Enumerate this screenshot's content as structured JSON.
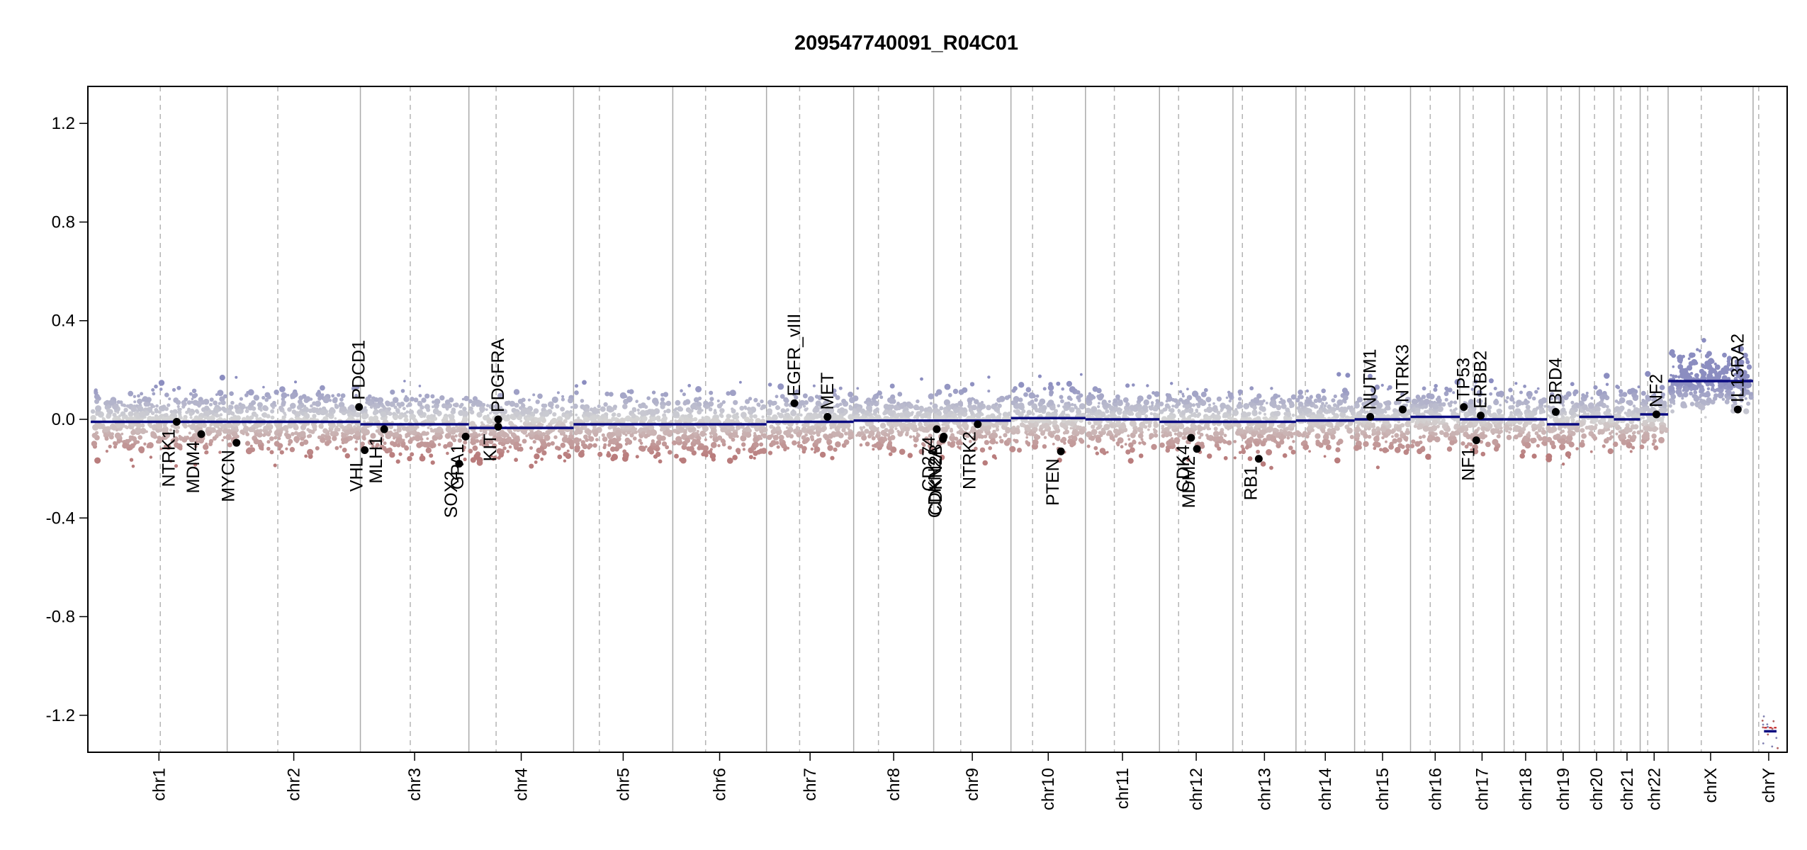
{
  "chart_data": {
    "type": "scatter",
    "title": "209547740091_R04C01",
    "xlabel": "",
    "ylabel": "",
    "ylim": [
      -1.35,
      1.35
    ],
    "y_ticks": [
      -1.2,
      -0.8,
      -0.4,
      0.0,
      0.4,
      0.8,
      1.2
    ],
    "y_tick_labels": [
      "-1.2",
      "-0.8",
      "-0.4",
      "0.0",
      "0.4",
      "0.8",
      "1.2"
    ],
    "grid": false,
    "colors": {
      "gain": "#8b8dc0",
      "loss": "#b97c7c",
      "neutral": "#d4d4d4",
      "segment": "#0a0a80",
      "segment_y": "#c01010",
      "boundary": "#aaaaaa",
      "centromere": "#b4b4b4",
      "gene_point": "#000000"
    },
    "chromosomes": [
      {
        "name": "chr1",
        "len": 249,
        "cen": 0.51,
        "segments": [
          {
            "f0": 0,
            "f1": 1,
            "v": -0.01
          }
        ]
      },
      {
        "name": "chr2",
        "len": 243,
        "cen": 0.38,
        "segments": [
          {
            "f0": 0,
            "f1": 1,
            "v": -0.01
          }
        ]
      },
      {
        "name": "chr3",
        "len": 198,
        "cen": 0.46,
        "segments": [
          {
            "f0": 0,
            "f1": 1,
            "v": -0.02
          }
        ]
      },
      {
        "name": "chr4",
        "len": 191,
        "cen": 0.26,
        "segments": [
          {
            "f0": 0,
            "f1": 1,
            "v": -0.035
          }
        ]
      },
      {
        "name": "chr5",
        "len": 181,
        "cen": 0.26,
        "segments": [
          {
            "f0": 0,
            "f1": 1,
            "v": -0.02
          }
        ]
      },
      {
        "name": "chr6",
        "len": 171,
        "cen": 0.35,
        "segments": [
          {
            "f0": 0,
            "f1": 1,
            "v": -0.02
          }
        ]
      },
      {
        "name": "chr7",
        "len": 159,
        "cen": 0.38,
        "segments": [
          {
            "f0": 0,
            "f1": 1,
            "v": -0.01
          }
        ]
      },
      {
        "name": "chr8",
        "len": 146,
        "cen": 0.31,
        "segments": [
          {
            "f0": 0,
            "f1": 1,
            "v": -0.005
          }
        ]
      },
      {
        "name": "chr9",
        "len": 141,
        "cen": 0.35,
        "segments": [
          {
            "f0": 0,
            "f1": 1,
            "v": -0.005
          }
        ]
      },
      {
        "name": "chr10",
        "len": 136,
        "cen": 0.29,
        "segments": [
          {
            "f0": 0,
            "f1": 1,
            "v": 0.005
          }
        ]
      },
      {
        "name": "chr11",
        "len": 135,
        "cen": 0.39,
        "segments": [
          {
            "f0": 0,
            "f1": 1,
            "v": 0.0
          }
        ]
      },
      {
        "name": "chr12",
        "len": 134,
        "cen": 0.26,
        "segments": [
          {
            "f0": 0,
            "f1": 1,
            "v": -0.01
          }
        ]
      },
      {
        "name": "chr13",
        "len": 115,
        "cen": 0.15,
        "segments": [
          {
            "f0": 0,
            "f1": 1,
            "v": -0.01
          }
        ]
      },
      {
        "name": "chr14",
        "len": 107,
        "cen": 0.16,
        "segments": [
          {
            "f0": 0,
            "f1": 1,
            "v": -0.005
          }
        ]
      },
      {
        "name": "chr15",
        "len": 102,
        "cen": 0.18,
        "segments": [
          {
            "f0": 0,
            "f1": 1,
            "v": 0.0
          }
        ]
      },
      {
        "name": "chr16",
        "len": 90,
        "cen": 0.4,
        "segments": [
          {
            "f0": 0,
            "f1": 1,
            "v": 0.01
          }
        ]
      },
      {
        "name": "chr17",
        "len": 81,
        "cen": 0.3,
        "segments": [
          {
            "f0": 0,
            "f1": 1,
            "v": 0.0
          }
        ]
      },
      {
        "name": "chr18",
        "len": 78,
        "cen": 0.22,
        "segments": [
          {
            "f0": 0,
            "f1": 1,
            "v": 0.0
          }
        ]
      },
      {
        "name": "chr19",
        "len": 59,
        "cen": 0.44,
        "segments": [
          {
            "f0": 0,
            "f1": 1,
            "v": -0.02
          }
        ]
      },
      {
        "name": "chr20",
        "len": 63,
        "cen": 0.44,
        "segments": [
          {
            "f0": 0,
            "f1": 1,
            "v": 0.01
          }
        ]
      },
      {
        "name": "chr21",
        "len": 48,
        "cen": 0.27,
        "segments": [
          {
            "f0": 0,
            "f1": 1,
            "v": 0.0
          }
        ]
      },
      {
        "name": "chr22",
        "len": 51,
        "cen": 0.27,
        "segments": [
          {
            "f0": 0,
            "f1": 1,
            "v": 0.02
          }
        ]
      },
      {
        "name": "chrX",
        "len": 155,
        "cen": 0.39,
        "segments": [
          {
            "f0": 0,
            "f1": 1,
            "v": 0.155
          }
        ]
      },
      {
        "name": "chrY",
        "len": 57,
        "cen": 0.18,
        "segments": [
          {
            "f0": 0.35,
            "f1": 0.75,
            "v": -1.265
          }
        ]
      }
    ],
    "genes": [
      {
        "name": "NTRK1",
        "chr": "chr1",
        "f": 0.63,
        "y": -0.01,
        "label_side": "below"
      },
      {
        "name": "MDM4",
        "chr": "chr1",
        "f": 0.81,
        "y": -0.06,
        "label_side": "below"
      },
      {
        "name": "MYCN",
        "chr": "chr2",
        "f": 0.07,
        "y": -0.095,
        "label_side": "below"
      },
      {
        "name": "PDCD1",
        "chr": "chr2",
        "f": 0.99,
        "y": 0.05,
        "label_side": "above"
      },
      {
        "name": "VHL",
        "chr": "chr3",
        "f": 0.04,
        "y": -0.125,
        "label_side": "below"
      },
      {
        "name": "MLH1",
        "chr": "chr3",
        "f": 0.22,
        "y": -0.04,
        "label_side": "below"
      },
      {
        "name": "SOX2",
        "chr": "chr3",
        "f": 0.91,
        "y": -0.18,
        "label_side": "below"
      },
      {
        "name": "GPA1",
        "chr": "chr3",
        "f": 0.97,
        "y": -0.07,
        "label_side": "below"
      },
      {
        "name": "PDGFRA",
        "chr": "chr4",
        "f": 0.28,
        "y": 0.0,
        "label_side": "above"
      },
      {
        "name": "KIT",
        "chr": "chr4",
        "f": 0.28,
        "y": -0.03,
        "label_side": "below"
      },
      {
        "name": "EGFR_vIII",
        "chr": "chr7",
        "f": 0.32,
        "y": 0.065,
        "label_side": "above"
      },
      {
        "name": "MET",
        "chr": "chr7",
        "f": 0.7,
        "y": 0.01,
        "label_side": "above"
      },
      {
        "name": "CD274",
        "chr": "chr9",
        "f": 0.04,
        "y": -0.04,
        "label_side": "below"
      },
      {
        "name": "CDKN2A",
        "chr": "chr9",
        "f": 0.12,
        "y": -0.08,
        "label_side": "below"
      },
      {
        "name": "CDKN2B",
        "chr": "chr9",
        "f": 0.13,
        "y": -0.07,
        "label_side": "below"
      },
      {
        "name": "NTRK2",
        "chr": "chr9",
        "f": 0.57,
        "y": -0.02,
        "label_side": "below"
      },
      {
        "name": "PTEN",
        "chr": "chr10",
        "f": 0.67,
        "y": -0.13,
        "label_side": "below"
      },
      {
        "name": "CDK4",
        "chr": "chr12",
        "f": 0.43,
        "y": -0.075,
        "label_side": "below"
      },
      {
        "name": "MDM2",
        "chr": "chr12",
        "f": 0.51,
        "y": -0.12,
        "label_side": "below"
      },
      {
        "name": "RB1",
        "chr": "chr13",
        "f": 0.41,
        "y": -0.16,
        "label_side": "below"
      },
      {
        "name": "NUTM1",
        "chr": "chr15",
        "f": 0.28,
        "y": 0.01,
        "label_side": "above"
      },
      {
        "name": "NTRK3",
        "chr": "chr15",
        "f": 0.86,
        "y": 0.04,
        "label_side": "above"
      },
      {
        "name": "TP53",
        "chr": "chr17",
        "f": 0.09,
        "y": 0.05,
        "label_side": "above"
      },
      {
        "name": "NF1",
        "chr": "chr17",
        "f": 0.37,
        "y": -0.085,
        "label_side": "below"
      },
      {
        "name": "ERBB2",
        "chr": "chr17",
        "f": 0.47,
        "y": 0.015,
        "label_side": "above"
      },
      {
        "name": "BRD4",
        "chr": "chr19",
        "f": 0.27,
        "y": 0.03,
        "label_side": "above"
      },
      {
        "name": "NF2",
        "chr": "chr22",
        "f": 0.58,
        "y": 0.02,
        "label_side": "above"
      },
      {
        "name": "IL13RA2",
        "chr": "chrX",
        "f": 0.82,
        "y": 0.04,
        "label_side": "above"
      }
    ]
  }
}
